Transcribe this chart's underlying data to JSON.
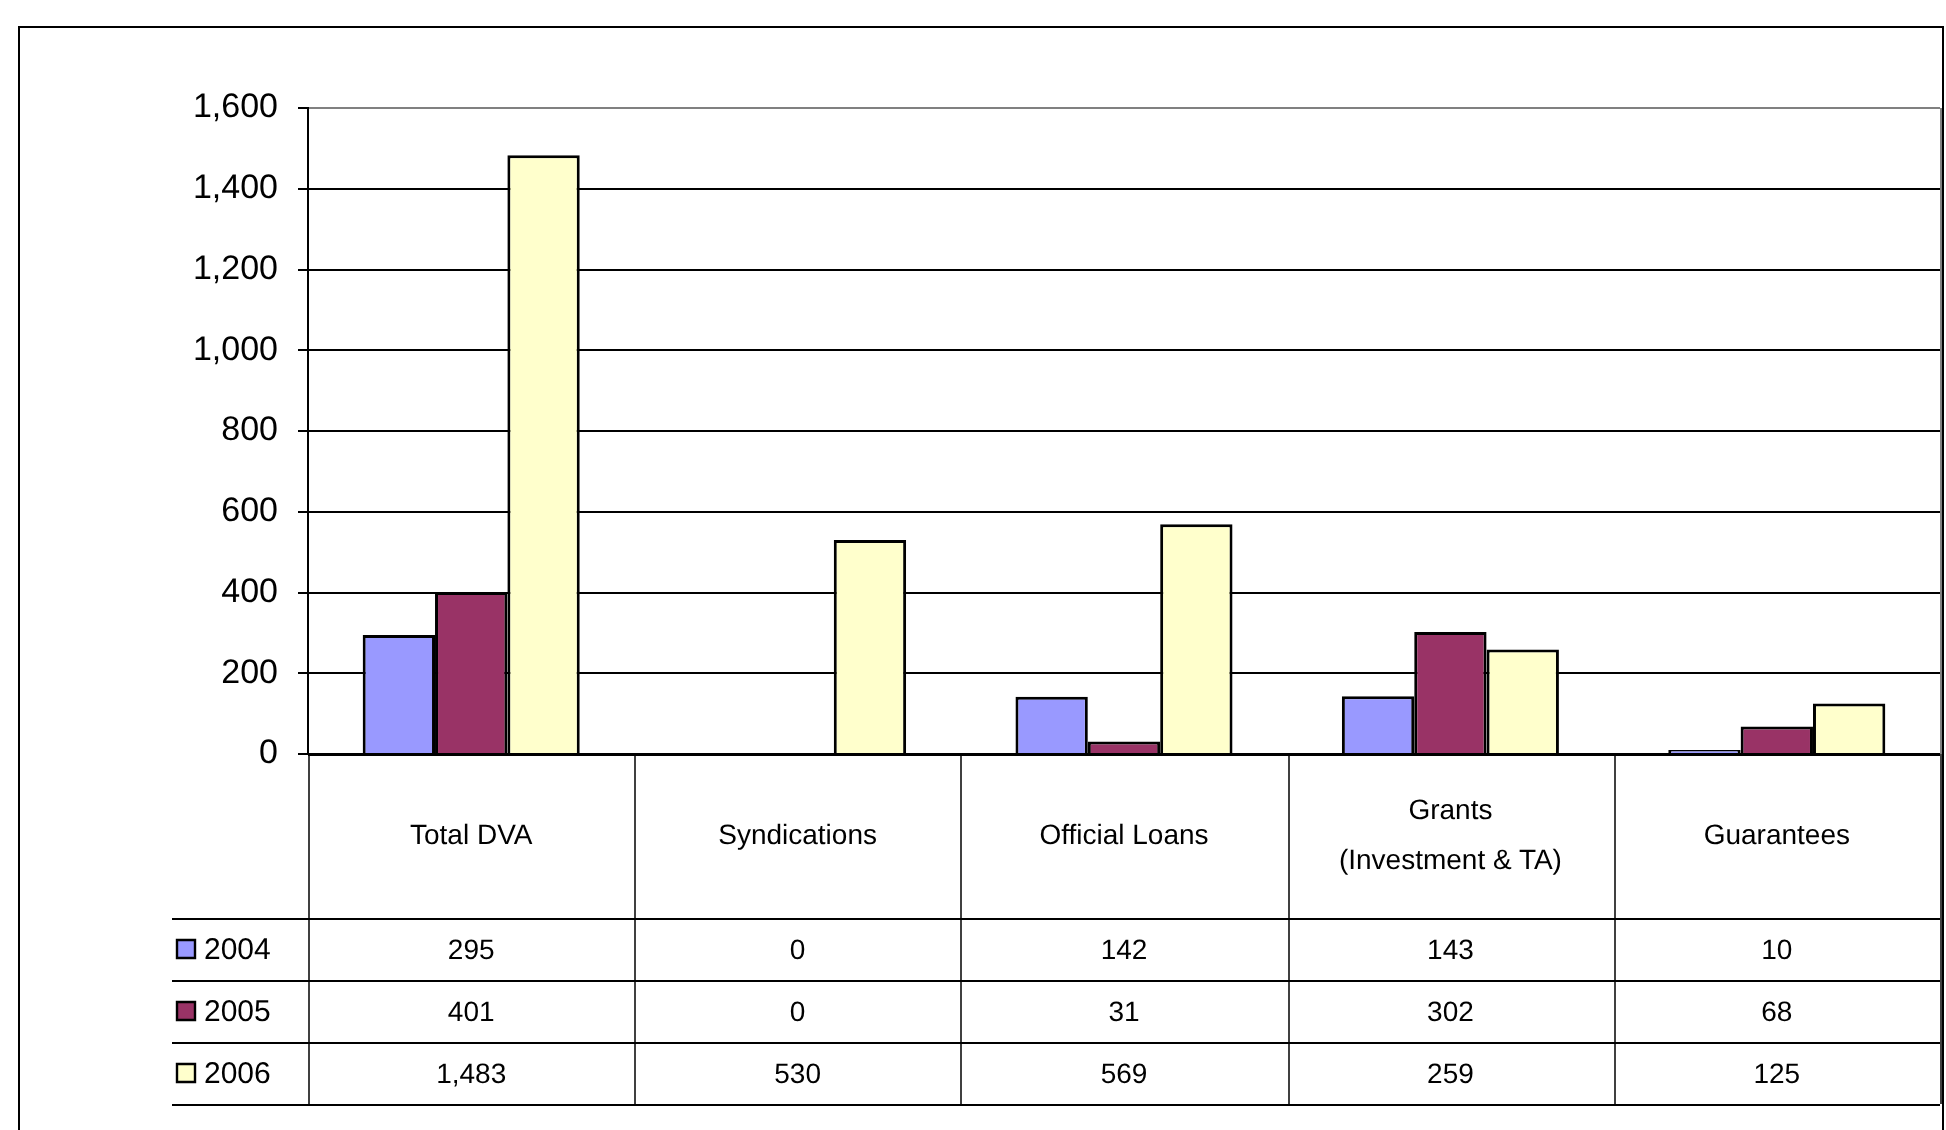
{
  "chart_data": {
    "type": "bar",
    "categories": [
      "Total DVA",
      "Syndications",
      "Official Loans",
      "Grants (Investment & TA)",
      "Guarantees"
    ],
    "series": [
      {
        "name": "2004",
        "color": "#9999ff",
        "values": [
          295,
          0,
          142,
          143,
          10
        ],
        "value_labels": [
          "295",
          "0",
          "142",
          "143",
          "10"
        ]
      },
      {
        "name": "2005",
        "color": "#993366",
        "values": [
          401,
          0,
          31,
          302,
          68
        ],
        "value_labels": [
          "401",
          "0",
          "31",
          "302",
          "68"
        ]
      },
      {
        "name": "2006",
        "color": "#ffffcc",
        "values": [
          1483,
          530,
          569,
          259,
          125
        ],
        "value_labels": [
          "1,483",
          "530",
          "569",
          "259",
          "125"
        ]
      }
    ],
    "ylim": [
      0,
      1600
    ],
    "yticks": [
      0,
      200,
      400,
      600,
      800,
      {
        "value": 1000,
        "label": "1,000"
      },
      {
        "value": 1200,
        "label": "1,200"
      },
      {
        "value": 1400,
        "label": "1,400"
      },
      {
        "value": 1600,
        "label": "1,600"
      }
    ],
    "grid": "y",
    "legend": "bottom"
  }
}
